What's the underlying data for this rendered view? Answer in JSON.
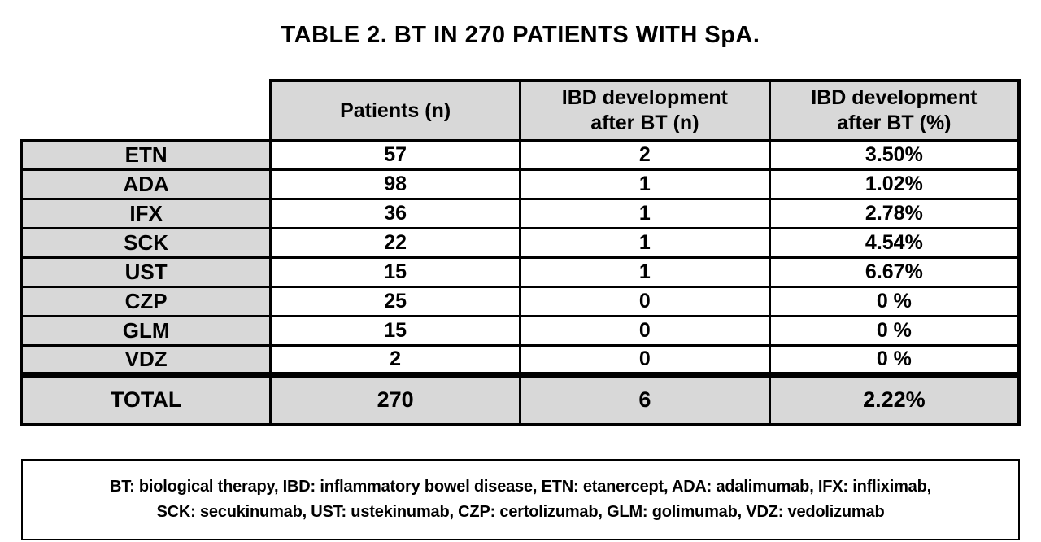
{
  "title": "TABLE 2. BT IN 270 PATIENTS WITH SpA.",
  "table": {
    "headers": {
      "patients": "Patients (n)",
      "ibd_n": "IBD development\nafter BT (n)",
      "ibd_pct": "IBD development\nafter BT (%)"
    },
    "rows": [
      {
        "label": "ETN",
        "patients": "57",
        "ibd_n": "2",
        "ibd_pct": "3.50%"
      },
      {
        "label": "ADA",
        "patients": "98",
        "ibd_n": "1",
        "ibd_pct": "1.02%"
      },
      {
        "label": "IFX",
        "patients": "36",
        "ibd_n": "1",
        "ibd_pct": "2.78%"
      },
      {
        "label": "SCK",
        "patients": "22",
        "ibd_n": "1",
        "ibd_pct": "4.54%"
      },
      {
        "label": "UST",
        "patients": "15",
        "ibd_n": "1",
        "ibd_pct": "6.67%"
      },
      {
        "label": "CZP",
        "patients": "25",
        "ibd_n": "0",
        "ibd_pct": "0 %"
      },
      {
        "label": "GLM",
        "patients": "15",
        "ibd_n": "0",
        "ibd_pct": "0 %"
      },
      {
        "label": "VDZ",
        "patients": "2",
        "ibd_n": "0",
        "ibd_pct": "0 %"
      }
    ],
    "total": {
      "label": "TOTAL",
      "patients": "270",
      "ibd_n": "6",
      "ibd_pct": "2.22%"
    }
  },
  "footnote": {
    "text": "BT: biological therapy, IBD: inflammatory bowel disease, ETN: etanercept, ADA: adalimumab, IFX: infliximab,\nSCK: secukinumab, UST: ustekinumab, CZP: certolizumab, GLM: golimumab, VDZ: vedolizumab"
  },
  "colors": {
    "cell_gray": "#d8d8d8",
    "border": "#000000",
    "background": "#ffffff"
  }
}
